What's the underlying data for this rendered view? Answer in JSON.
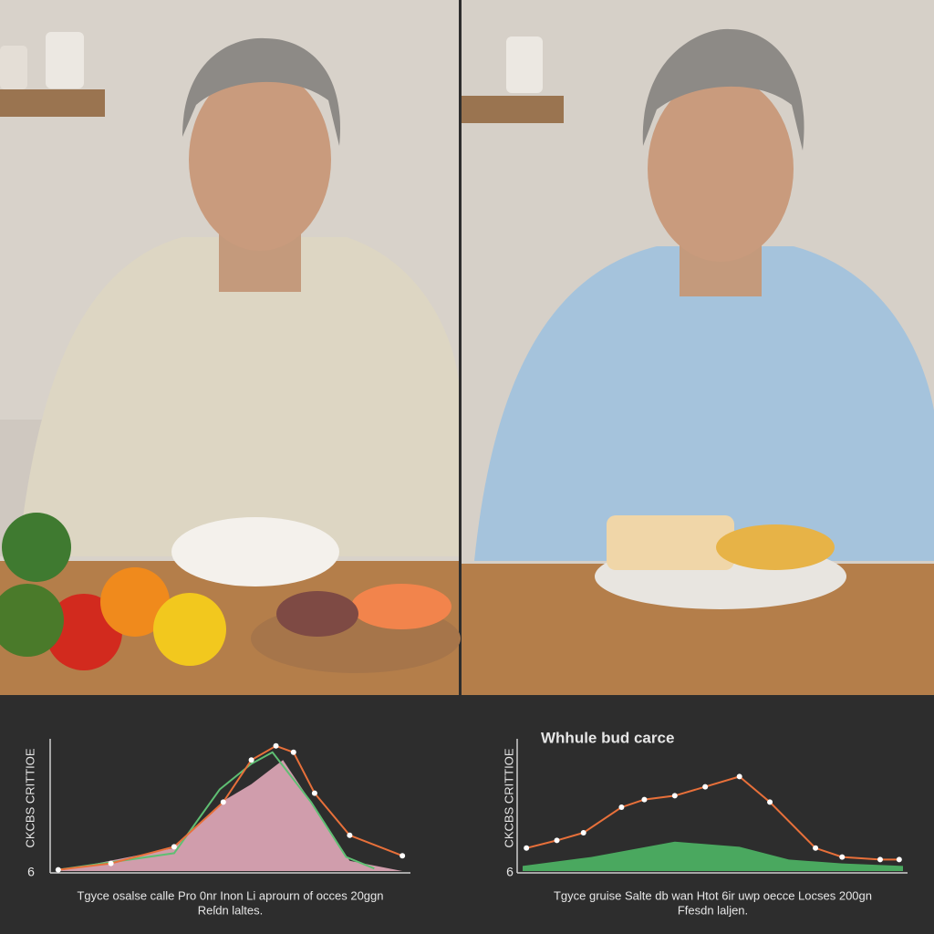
{
  "chart_data": [
    {
      "type": "line",
      "origin_label": "6",
      "ylabel": "CKCBS CRITTIOE",
      "xlabel": "Tgyce osalse calle Pro 0nr Inon Li aprourn of occes 20ggn",
      "xlabel2": "Reſdn laltes.",
      "xlim": [
        0,
        100
      ],
      "ylim": [
        0,
        100
      ],
      "series": [
        {
          "kind": "area",
          "color": "#d9a3b3",
          "x": [
            1,
            34,
            48,
            56,
            65,
            73,
            84,
            99
          ],
          "values": [
            0,
            18,
            55,
            68,
            87,
            54,
            8,
            0
          ]
        },
        {
          "kind": "line",
          "color": "#5fbf73",
          "x": [
            1,
            34,
            47,
            56,
            62,
            73,
            83,
            91
          ],
          "values": [
            1,
            14,
            64,
            84,
            93,
            54,
            11,
            2
          ]
        },
        {
          "kind": "line",
          "color": "#e8703a",
          "markers": true,
          "x": [
            1,
            16,
            34,
            48,
            56,
            63,
            68,
            74,
            84,
            99
          ],
          "values": [
            1,
            6,
            19,
            54,
            87,
            98,
            93,
            61,
            28,
            12
          ]
        }
      ]
    },
    {
      "type": "line",
      "title": "Whhule bud carce",
      "origin_label": "6",
      "ylabel": "CKCBS CRITTIOE",
      "xlabel": "Tgyce gruise Salte db wan Htot 6ir uwp oecce Locses 200gn",
      "xlabel2": "Ffesdn laljen.",
      "xlim": [
        0,
        100
      ],
      "ylim": [
        0,
        100
      ],
      "series": [
        {
          "kind": "area",
          "color": "#4caf62",
          "x": [
            0,
            18,
            40,
            57,
            70,
            84,
            100
          ],
          "values": [
            4,
            11,
            23,
            19,
            9,
            6,
            4
          ]
        },
        {
          "kind": "line",
          "color": "#e8703a",
          "markers": true,
          "x": [
            1,
            9,
            16,
            26,
            32,
            40,
            48,
            57,
            65,
            77,
            84,
            94,
            99
          ],
          "values": [
            18,
            24,
            30,
            50,
            56,
            59,
            66,
            74,
            54,
            18,
            11,
            9,
            9
          ]
        }
      ]
    }
  ]
}
